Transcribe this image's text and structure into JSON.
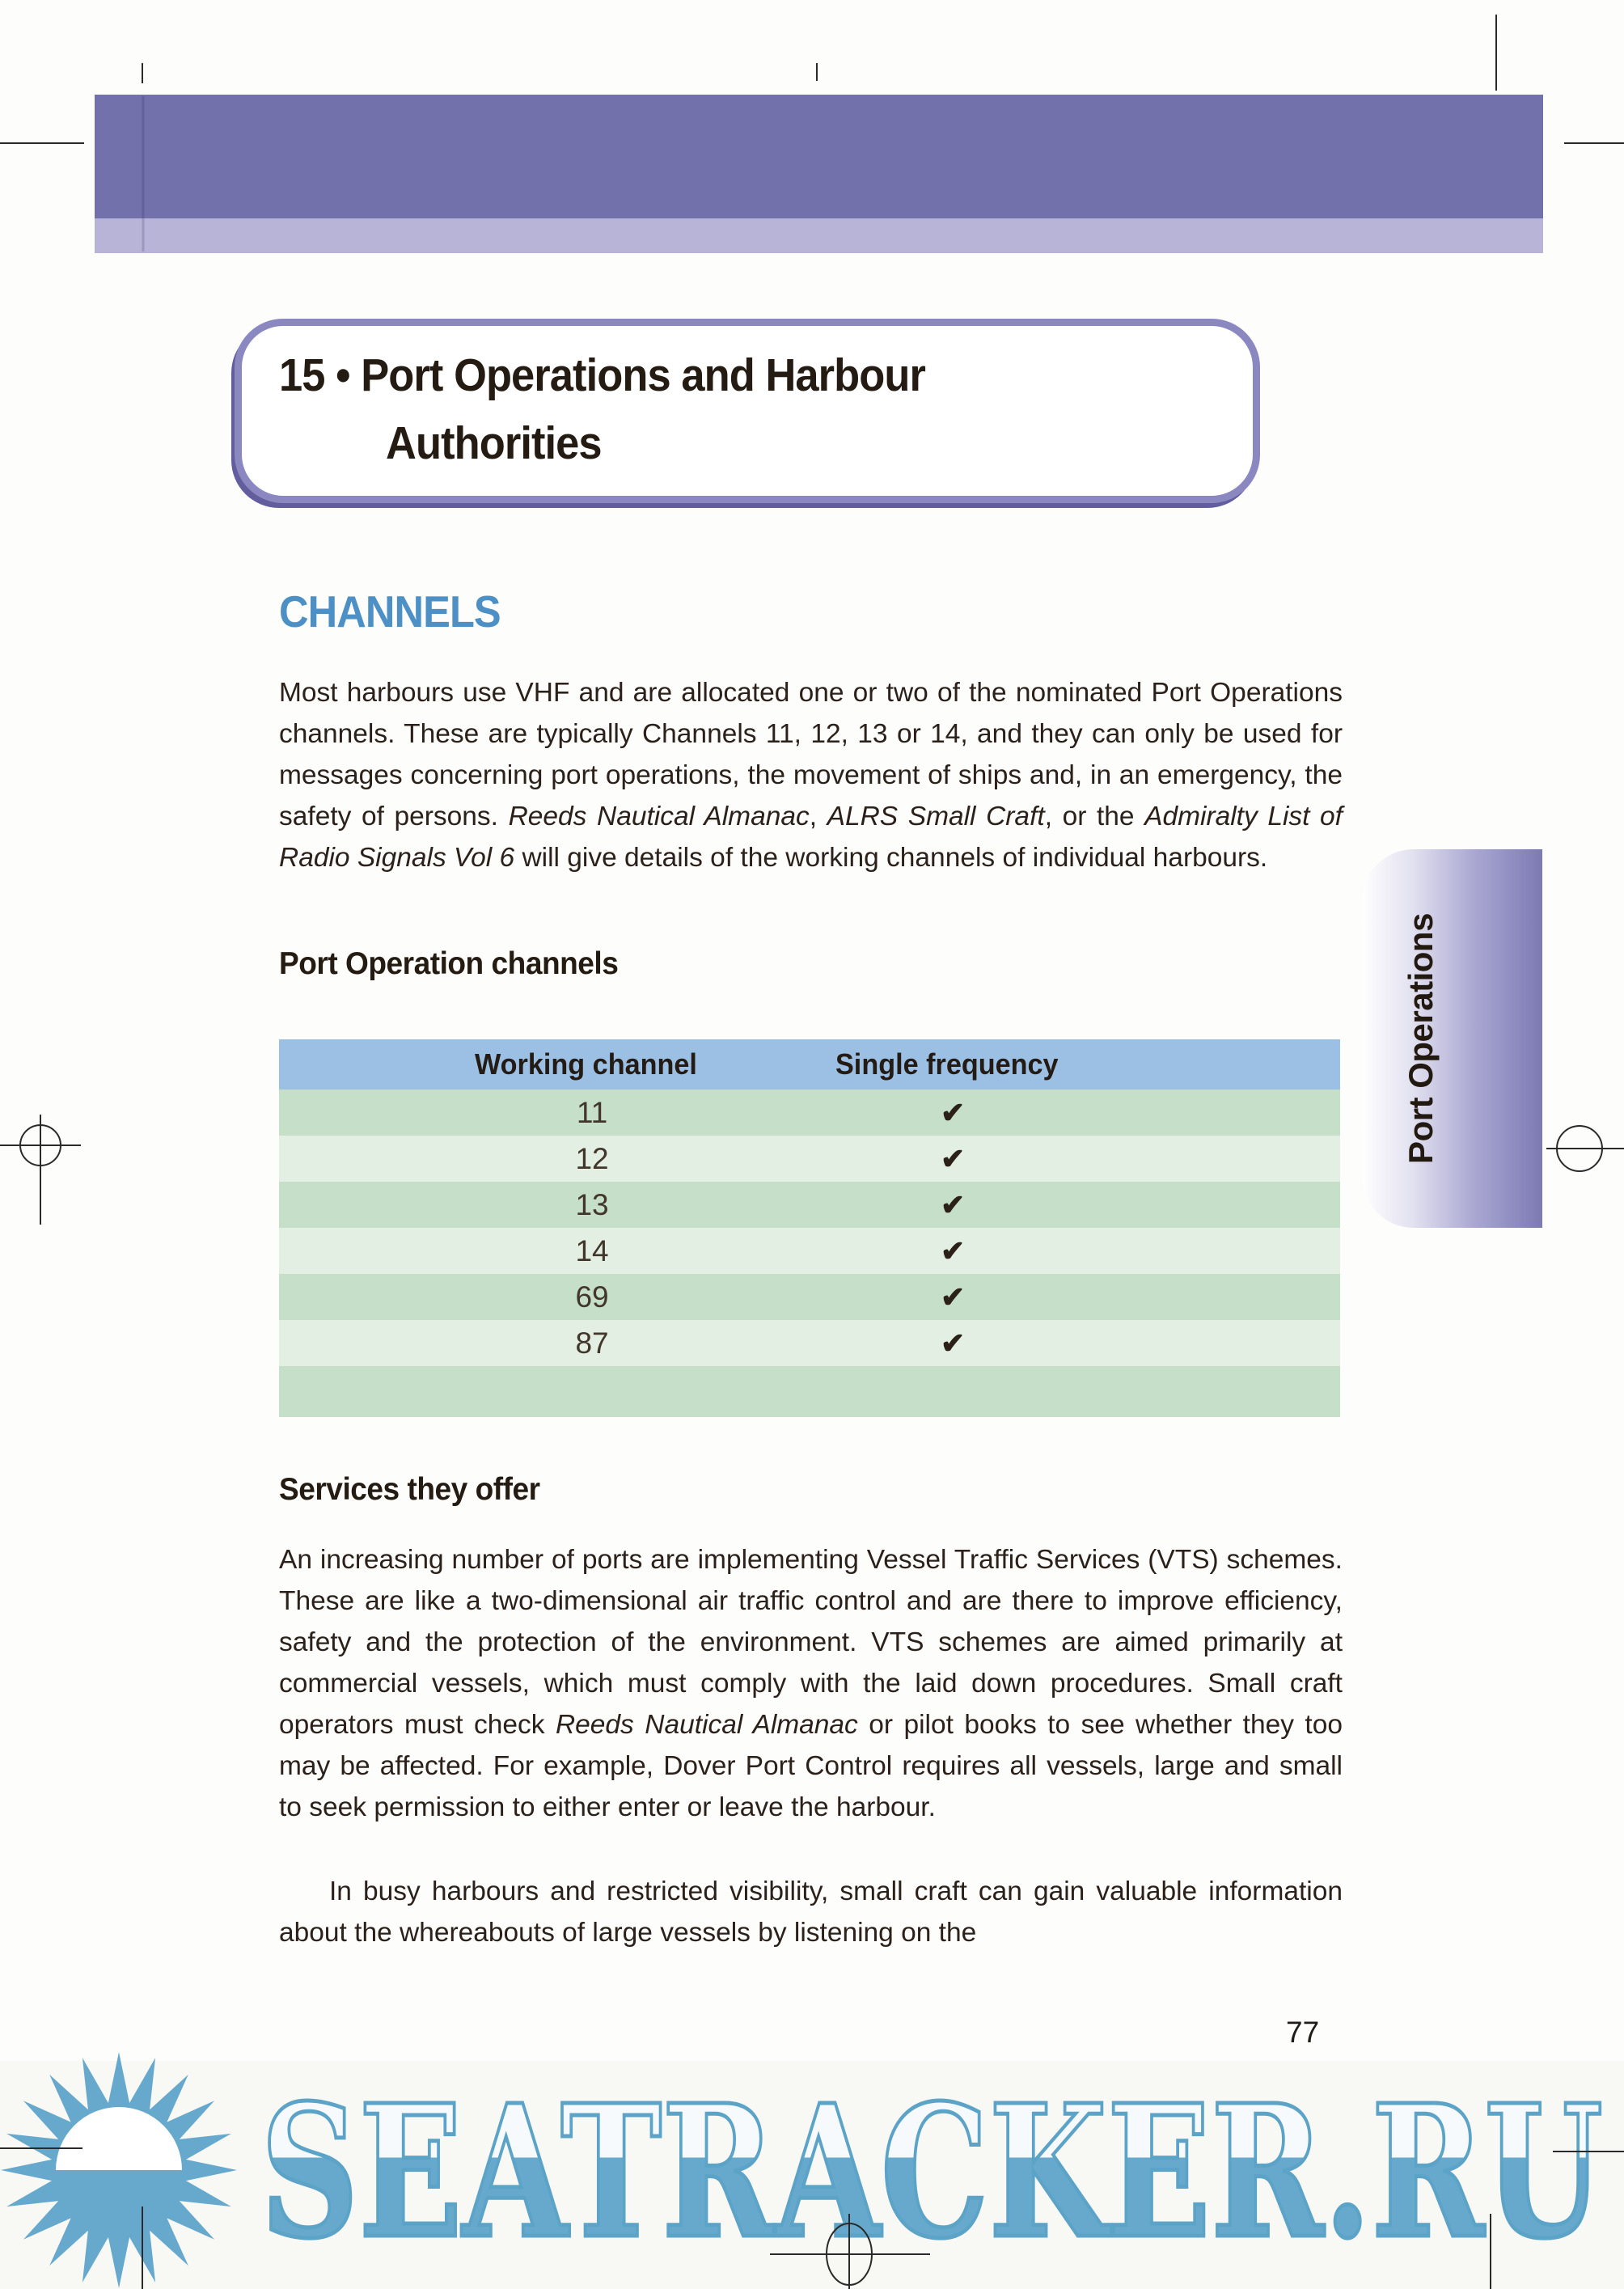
{
  "page": {
    "number": "77"
  },
  "header": {
    "title_line1": "15 • Port Operations and Harbour",
    "title_line2": "Authorities"
  },
  "sections": {
    "channels": {
      "heading": "CHANNELS",
      "paragraph": [
        {
          "t": "Most harbours use VHF and are allocated one or two of the nominated Port Operations channels. These are typically Channels 11, 12, 13 or 14, and they can only be used for messages concerning port operations, the movement of ships and, in an emergency, the safety of persons. "
        },
        {
          "t": "Reeds Nautical Almanac",
          "i": true
        },
        {
          "t": ", "
        },
        {
          "t": "ALRS Small Craft",
          "i": true
        },
        {
          "t": ", or the "
        },
        {
          "t": "Admiralty List of Radio Signals Vol 6",
          "i": true
        },
        {
          "t": " will give details of the working channels of individual harbours."
        }
      ]
    },
    "port_operation_channels": {
      "heading": "Port Operation channels"
    },
    "services": {
      "heading": "Services they offer",
      "paragraph1": [
        {
          "t": "An increasing number of ports are implementing Vessel Traffic Services (VTS) schemes. These are like a two-dimensional air traffic control and are there to improve efficiency, safety and the protection of the environment. VTS schemes are aimed primarily at commercial vessels, which must comply with the laid down procedures. Small craft operators must check "
        },
        {
          "t": "Reeds Nautical Almanac",
          "i": true
        },
        {
          "t": " or pilot books to see whether they too may be affected. For example, Dover Port Control requires all vessels, large and small to seek permission to either enter or leave the harbour."
        }
      ],
      "paragraph2": [
        {
          "t": "In busy harbours and restricted visibility, small craft can gain valuable information about the whereabouts of large vessels by listening on the"
        }
      ]
    }
  },
  "table": {
    "headers": [
      "Working channel",
      "Single frequency"
    ],
    "rows": [
      {
        "channel": "11",
        "single_frequency": "✔"
      },
      {
        "channel": "12",
        "single_frequency": "✔"
      },
      {
        "channel": "13",
        "single_frequency": "✔"
      },
      {
        "channel": "14",
        "single_frequency": "✔"
      },
      {
        "channel": "69",
        "single_frequency": "✔"
      },
      {
        "channel": "87",
        "single_frequency": "✔"
      }
    ]
  },
  "side_tab": {
    "label": "Port Operations"
  },
  "watermark": {
    "text": "SEATRACKER.RU",
    "logo": "sun-over-sea-icon"
  },
  "colors": {
    "header_bar": "#7271ac",
    "header_bar_light": "#b7b4d8",
    "title_border": "#8a87c1",
    "heading_blue": "#4c90c6",
    "table_header_bg": "#9cc0e4",
    "row_green_dark": "#c6dfc8",
    "row_green_light": "#e2efe2",
    "watermark_blue": "#66a9cd",
    "tab_purple": "#8583ba",
    "text": "#2b211a"
  }
}
